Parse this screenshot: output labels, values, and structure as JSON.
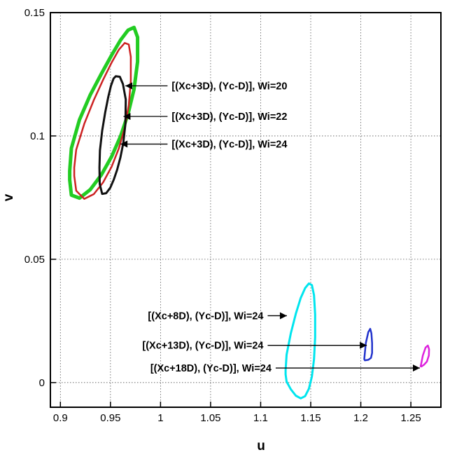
{
  "chart_data": {
    "type": "line",
    "title": "",
    "xlabel": "u",
    "ylabel": "v",
    "xlim": [
      0.89,
      1.28
    ],
    "ylim": [
      -0.01,
      0.15
    ],
    "xticks": [
      0.9,
      0.95,
      1,
      1.05,
      1.1,
      1.15,
      1.2,
      1.25
    ],
    "xtick_labels": [
      "0.9",
      "0.95",
      "1",
      "1.05",
      "1.1",
      "1.15",
      "1.2",
      "1.25"
    ],
    "yticks": [
      0,
      0.05,
      0.1,
      0.15
    ],
    "ytick_labels": [
      "0",
      "0.05",
      "0.1",
      "0.15"
    ],
    "grid": true,
    "series": [
      {
        "color": "#22cc22",
        "stroke_width": 5,
        "x": [
          0.9093,
          0.911,
          0.9191,
          0.9298,
          0.941,
          0.9512,
          0.9601,
          0.9676,
          0.9735,
          0.9771,
          0.9771,
          0.9735,
          0.9676,
          0.9601,
          0.9512,
          0.941,
          0.9298,
          0.9191,
          0.911,
          0.9093,
          0.9093
        ],
        "y": [
          0.0858,
          0.095,
          0.1066,
          0.1166,
          0.1253,
          0.1328,
          0.1389,
          0.1429,
          0.144,
          0.14,
          0.1301,
          0.1189,
          0.1089,
          0.0999,
          0.0917,
          0.0843,
          0.0782,
          0.0748,
          0.076,
          0.0822,
          0.0858
        ]
      },
      {
        "color": "#cc2222",
        "stroke_width": 2.5,
        "x": [
          0.9138,
          0.9158,
          0.9238,
          0.9333,
          0.9427,
          0.9512,
          0.9584,
          0.9642,
          0.9683,
          0.9703,
          0.9703,
          0.9683,
          0.9642,
          0.9584,
          0.9512,
          0.9427,
          0.9333,
          0.9238,
          0.9158,
          0.9138,
          0.9138
        ],
        "y": [
          0.0872,
          0.0944,
          0.1049,
          0.1145,
          0.1228,
          0.1298,
          0.135,
          0.1377,
          0.1371,
          0.1321,
          0.1223,
          0.1125,
          0.1033,
          0.095,
          0.0876,
          0.0812,
          0.0764,
          0.0745,
          0.0778,
          0.0838,
          0.0872
        ]
      },
      {
        "color": "#111111",
        "stroke_width": 3,
        "x": [
          0.939,
          0.9395,
          0.9417,
          0.9447,
          0.9478,
          0.9505,
          0.9531,
          0.9553,
          0.9593,
          0.9625,
          0.9653,
          0.965,
          0.9628,
          0.9599,
          0.9567,
          0.9533,
          0.9498,
          0.9457,
          0.9417,
          0.9393,
          0.939
        ],
        "y": [
          0.0872,
          0.0941,
          0.1021,
          0.1095,
          0.1158,
          0.1204,
          0.1233,
          0.1242,
          0.124,
          0.121,
          0.1148,
          0.1051,
          0.0972,
          0.0912,
          0.0863,
          0.0823,
          0.079,
          0.0768,
          0.0765,
          0.0805,
          0.0872
        ]
      },
      {
        "color": "#00e5ee",
        "stroke_width": 3,
        "x": [
          1.1249,
          1.1259,
          1.1301,
          1.1351,
          1.14,
          1.1444,
          1.1482,
          1.1512,
          1.1533,
          1.1544,
          1.1544,
          1.1533,
          1.1512,
          1.1482,
          1.1444,
          1.14,
          1.1351,
          1.1301,
          1.1259,
          1.1249,
          1.1249
        ],
        "y": [
          0.005,
          0.0113,
          0.0199,
          0.0279,
          0.0343,
          0.0383,
          0.0402,
          0.0395,
          0.0354,
          0.0276,
          0.0183,
          0.0095,
          0.0025,
          -0.0025,
          -0.0055,
          -0.0064,
          -0.0053,
          -0.0027,
          0.0004,
          0.0033,
          0.005
        ]
      },
      {
        "color": "#2233cc",
        "stroke_width": 2.5,
        "x": [
          1.2035,
          1.205,
          1.2075,
          1.2094,
          1.2106,
          1.2113,
          1.2113,
          1.2102,
          1.2075,
          1.204,
          1.2035
        ],
        "y": [
          0.0095,
          0.016,
          0.0205,
          0.0218,
          0.02,
          0.016,
          0.012,
          0.01,
          0.0092,
          0.009,
          0.0095
        ]
      },
      {
        "color": "#dd22dd",
        "stroke_width": 2.5,
        "x": [
          1.26,
          1.262,
          1.2647,
          1.267,
          1.2682,
          1.268,
          1.266,
          1.263,
          1.2605,
          1.2597,
          1.26
        ],
        "y": [
          0.007,
          0.011,
          0.0142,
          0.015,
          0.0135,
          0.011,
          0.0085,
          0.0072,
          0.0065,
          0.0066,
          0.007
        ]
      }
    ],
    "annotations": [
      {
        "text": "[(Xc+3D), (Yc-D)], Wi=20",
        "from": [
          1.007,
          0.1203
        ],
        "to": [
          0.9648,
          0.1203
        ]
      },
      {
        "text": "[(Xc+3D), (Yc-D)], Wi=22",
        "from": [
          1.007,
          0.1079
        ],
        "to": [
          0.963,
          0.1079
        ]
      },
      {
        "text": "[(Xc+3D), (Yc-D)], Wi=24",
        "from": [
          1.007,
          0.0967
        ],
        "to": [
          0.96,
          0.0967
        ]
      },
      {
        "text": "[(Xc+8D), (Yc-D)], Wi=24",
        "from": [
          1.107,
          0.0271
        ],
        "to": [
          1.1262,
          0.0271
        ]
      },
      {
        "text": "[(Xc+13D), (Yc-D)], Wi=24",
        "from": [
          1.107,
          0.0151
        ],
        "to": [
          1.206,
          0.0151
        ]
      },
      {
        "text": "[(Xc+18D), (Yc-D)], Wi=24",
        "from": [
          1.115,
          0.0059
        ],
        "to": [
          1.259,
          0.0059
        ]
      }
    ]
  }
}
